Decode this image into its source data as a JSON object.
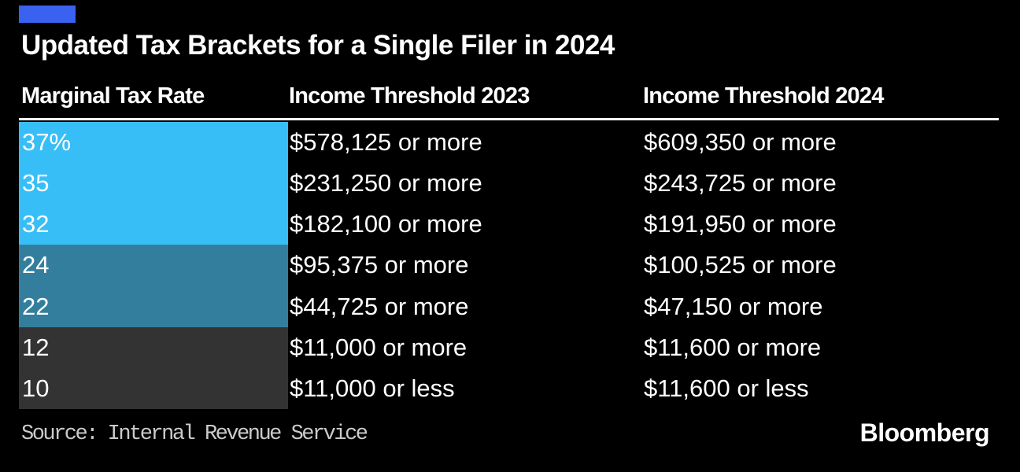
{
  "header": {
    "accent_color": "#3A62F1",
    "title": "Updated Tax Brackets for a Single Filer in 2024"
  },
  "chart_data": {
    "type": "table",
    "title": "Updated Tax Brackets for a Single Filer in 2024",
    "columns": [
      "Marginal Tax Rate",
      "Income Threshold 2023",
      "Income Threshold 2024"
    ],
    "rows": [
      {
        "rate": "37%",
        "threshold_2023": "$578,125 or more",
        "threshold_2024": "$609,350 or more",
        "bracket_group": "top"
      },
      {
        "rate": "35",
        "threshold_2023": "$231,250 or more",
        "threshold_2024": "$243,725 or more",
        "bracket_group": "top"
      },
      {
        "rate": "32",
        "threshold_2023": "$182,100 or more",
        "threshold_2024": "$191,950 or more",
        "bracket_group": "top"
      },
      {
        "rate": "24",
        "threshold_2023": "$95,375 or more",
        "threshold_2024": "$100,525 or more",
        "bracket_group": "middle"
      },
      {
        "rate": "22",
        "threshold_2023": "$44,725 or more",
        "threshold_2024": "$47,150 or more",
        "bracket_group": "middle"
      },
      {
        "rate": "12",
        "threshold_2023": "$11,000 or more",
        "threshold_2024": "$11,600 or more",
        "bracket_group": "bottom"
      },
      {
        "rate": "10",
        "threshold_2023": "$11,000 or less",
        "threshold_2024": "$11,600 or less",
        "bracket_group": "bottom"
      }
    ],
    "group_colors": {
      "top": "#38BEF7",
      "middle": "#347E9D",
      "bottom": "#333333"
    },
    "layout": {
      "background": "#000000",
      "text_color": "#FFFFFF",
      "rule_color": "#FFFFFF",
      "legend": "none",
      "grid": "off"
    }
  },
  "footer": {
    "source": "Source: Internal Revenue Service",
    "logo": "Bloomberg"
  }
}
